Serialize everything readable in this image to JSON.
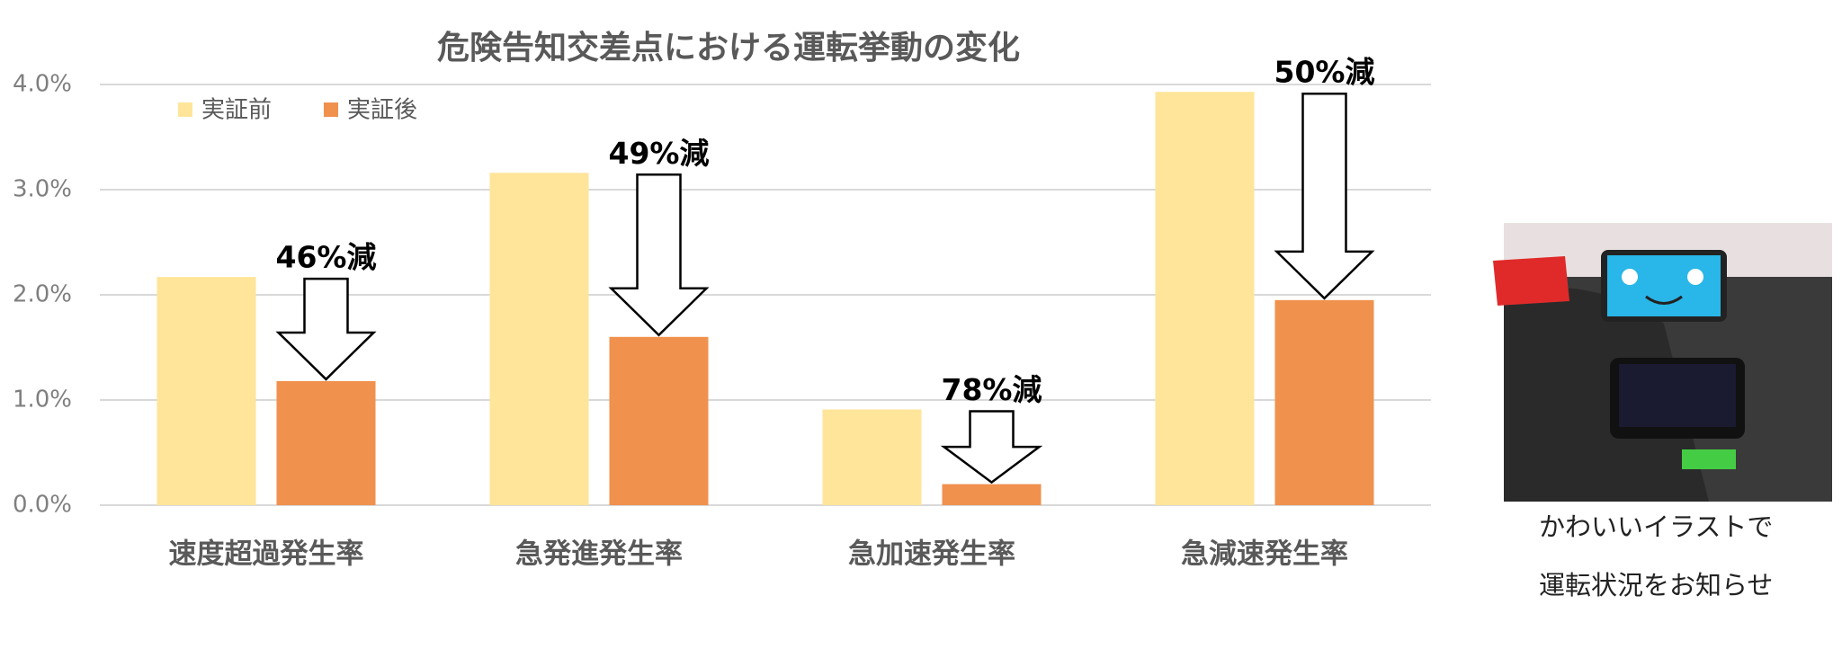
{
  "chart_data": {
    "type": "bar",
    "title": "危険告知交差点における運転挙動の変化",
    "categories": [
      "速度超過発生率",
      "急発進発生率",
      "急加速発生率",
      "急減速発生率"
    ],
    "series": [
      {
        "name": "実証前",
        "color": "#fee599",
        "values": [
          2.17,
          3.16,
          0.91,
          3.93
        ]
      },
      {
        "name": "実証後",
        "color": "#f0914e",
        "values": [
          1.18,
          1.6,
          0.2,
          1.95
        ]
      }
    ],
    "annotations": [
      "46%減",
      "49%減",
      "78%減",
      "50%減"
    ],
    "ylim": [
      0,
      4
    ],
    "yticks": [
      {
        "value": 0,
        "label": "0.0%"
      },
      {
        "value": 1,
        "label": "1.0%"
      },
      {
        "value": 2,
        "label": "2.0%"
      },
      {
        "value": 3,
        "label": "3.0%"
      },
      {
        "value": 4,
        "label": "4.0%"
      }
    ],
    "grid": true
  },
  "photo_caption": [
    "かわいいイラストで",
    "運転状況をお知らせ"
  ]
}
